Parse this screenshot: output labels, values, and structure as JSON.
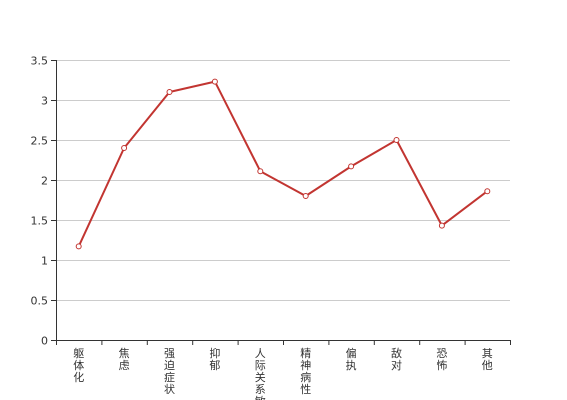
{
  "chart_data": {
    "type": "line",
    "title": "",
    "xlabel": "",
    "ylabel": "",
    "categories": [
      "躯体化",
      "焦虑",
      "强迫症状",
      "抑郁",
      "人际关系敏感",
      "精神病性",
      "偏执",
      "敌对",
      "恐怖",
      "其他"
    ],
    "series": [
      {
        "values": [
          1.17,
          2.4,
          3.1,
          3.23,
          2.11,
          1.8,
          2.17,
          2.5,
          1.43,
          1.86
        ],
        "color": "#c23531"
      }
    ],
    "ylim": [
      0,
      3.5
    ],
    "yticks": [
      "0",
      "0.5",
      "1",
      "1.5",
      "2",
      "2.5",
      "3",
      "3.5"
    ],
    "grid": true,
    "legend": "none",
    "axis_color": "#333333",
    "grid_color": "#cccccc"
  }
}
